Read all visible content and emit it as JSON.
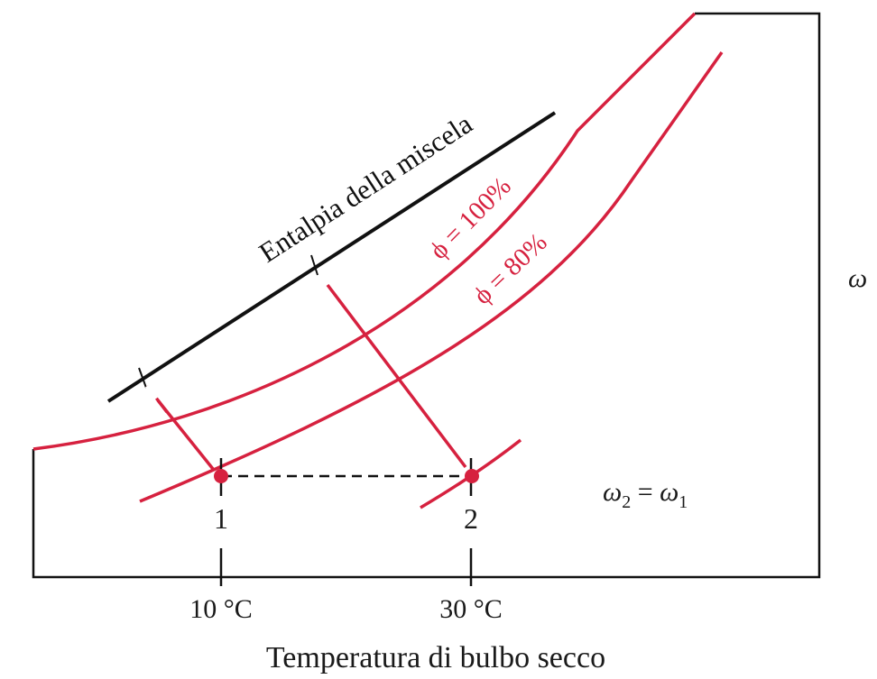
{
  "diagram": {
    "enthalpy_label": "Entalpia della miscela",
    "rh100_label": "ϕ = 100%",
    "rh80_label": "ϕ = 80%",
    "y_axis_label": "ω",
    "x_axis_label": "Temperatura di bulbo secco",
    "point1_label": "1",
    "point2_label": "2",
    "tick1_label": "10 °C",
    "tick2_label": "30 °C",
    "equation": {
      "omega": "ω",
      "sub2": "2",
      "equals": " = ",
      "sub1": "1"
    }
  },
  "colors": {
    "curve": "#d6213f",
    "point": "#d6213f",
    "line": "#111111",
    "frame": "#111111"
  }
}
